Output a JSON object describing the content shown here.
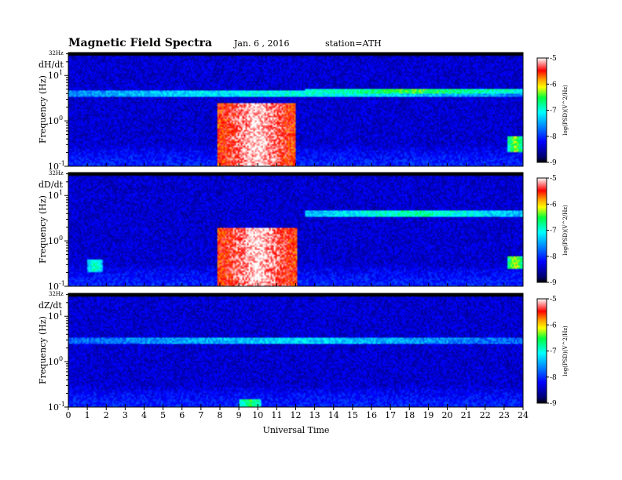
{
  "header": {
    "title": "Magnetic Field Spectra",
    "date": "Jan. 6 , 2016",
    "station": "station=ATH"
  },
  "chart_data": [
    {
      "type": "heatmap",
      "panel_label": "dH/dt",
      "ylabel": "Frequency (Hz)",
      "xlabel": "Universal Time",
      "x_ticks": [
        "0",
        "1",
        "2",
        "3",
        "4",
        "5",
        "6",
        "7",
        "8",
        "9",
        "10",
        "11",
        "12",
        "13",
        "14",
        "15",
        "16",
        "17",
        "18",
        "19",
        "20",
        "21",
        "22",
        "23",
        "24"
      ],
      "xlim": [
        0,
        24
      ],
      "ylim": [
        0.1,
        32
      ],
      "y_scale": "log",
      "y_ticks": [
        {
          "value": 0.1,
          "base": "10",
          "exp": "-1"
        },
        {
          "value": 1,
          "base": "10",
          "exp": "0"
        },
        {
          "value": 10,
          "base": "10",
          "exp": "1"
        }
      ],
      "top_freq_label": "32Hz",
      "colorbar": {
        "label": "log(PSD)(V^2/Hz)",
        "range": [
          -9,
          -5
        ],
        "ticks": [
          "-5",
          "-6",
          "-7",
          "-8",
          "-9"
        ]
      },
      "features": [
        {
          "name": "high-power burst",
          "x_range": [
            7.9,
            12.0
          ],
          "y_range": [
            0.1,
            2.5
          ],
          "peak_log_psd": -5.0
        },
        {
          "name": "narrow band",
          "x_range": [
            0,
            24
          ],
          "y_range": [
            3.5,
            4.5
          ],
          "peak_log_psd": -7.0
        },
        {
          "name": "band",
          "x_range": [
            12.5,
            24
          ],
          "y_range": [
            4.0,
            5.0
          ],
          "peak_log_psd": -6.5
        },
        {
          "name": "spot",
          "x_range": [
            23.2,
            24
          ],
          "y_range": [
            0.2,
            0.45
          ],
          "peak_log_psd": -6.3
        }
      ]
    },
    {
      "type": "heatmap",
      "panel_label": "dD/dt",
      "ylabel": "Frequency (Hz)",
      "xlabel": "Universal Time",
      "x_ticks": [
        "0",
        "1",
        "2",
        "3",
        "4",
        "5",
        "6",
        "7",
        "8",
        "9",
        "10",
        "11",
        "12",
        "13",
        "14",
        "15",
        "16",
        "17",
        "18",
        "19",
        "20",
        "21",
        "22",
        "23",
        "24"
      ],
      "xlim": [
        0,
        24
      ],
      "ylim": [
        0.1,
        32
      ],
      "y_scale": "log",
      "y_ticks": [
        {
          "value": 0.1,
          "base": "10",
          "exp": "-1"
        },
        {
          "value": 1,
          "base": "10",
          "exp": "0"
        },
        {
          "value": 10,
          "base": "10",
          "exp": "1"
        }
      ],
      "top_freq_label": "32Hz",
      "colorbar": {
        "label": "log(PSD)(V^2/Hz)",
        "range": [
          -9,
          -5
        ],
        "ticks": [
          "-5",
          "-6",
          "-7",
          "-8",
          "-9"
        ]
      },
      "features": [
        {
          "name": "high-power burst",
          "x_range": [
            7.9,
            12.1
          ],
          "y_range": [
            0.1,
            2.0
          ],
          "peak_log_psd": -5.0
        },
        {
          "name": "band",
          "x_range": [
            12.5,
            24
          ],
          "y_range": [
            3.5,
            4.5
          ],
          "peak_log_psd": -6.8
        },
        {
          "name": "spot",
          "x_range": [
            1.0,
            1.8
          ],
          "y_range": [
            0.2,
            0.4
          ],
          "peak_log_psd": -6.8
        },
        {
          "name": "spot",
          "x_range": [
            23.2,
            24
          ],
          "y_range": [
            0.25,
            0.45
          ],
          "peak_log_psd": -6.2
        }
      ]
    },
    {
      "type": "heatmap",
      "panel_label": "dZ/dt",
      "ylabel": "Frequency (Hz)",
      "xlabel": "Universal Time",
      "x_ticks": [
        "0",
        "1",
        "2",
        "3",
        "4",
        "5",
        "6",
        "7",
        "8",
        "9",
        "10",
        "11",
        "12",
        "13",
        "14",
        "15",
        "16",
        "17",
        "18",
        "19",
        "20",
        "21",
        "22",
        "23",
        "24"
      ],
      "xlim": [
        0,
        24
      ],
      "ylim": [
        0.1,
        32
      ],
      "y_scale": "log",
      "y_ticks": [
        {
          "value": 0.1,
          "base": "10",
          "exp": "-1"
        },
        {
          "value": 1,
          "base": "10",
          "exp": "0"
        },
        {
          "value": 10,
          "base": "10",
          "exp": "1"
        }
      ],
      "top_freq_label": "32Hz",
      "colorbar": {
        "label": "log(PSD)(V^2/Hz)",
        "range": [
          -9,
          -5
        ],
        "ticks": [
          "-5",
          "-6",
          "-7",
          "-8",
          "-9"
        ]
      },
      "features": [
        {
          "name": "band",
          "x_range": [
            0,
            24
          ],
          "y_range": [
            2.5,
            3.5
          ],
          "peak_log_psd": -7.2
        },
        {
          "name": "weak burst",
          "x_range": [
            9.0,
            10.2
          ],
          "y_range": [
            0.1,
            0.15
          ],
          "peak_log_psd": -6.5
        }
      ]
    }
  ]
}
